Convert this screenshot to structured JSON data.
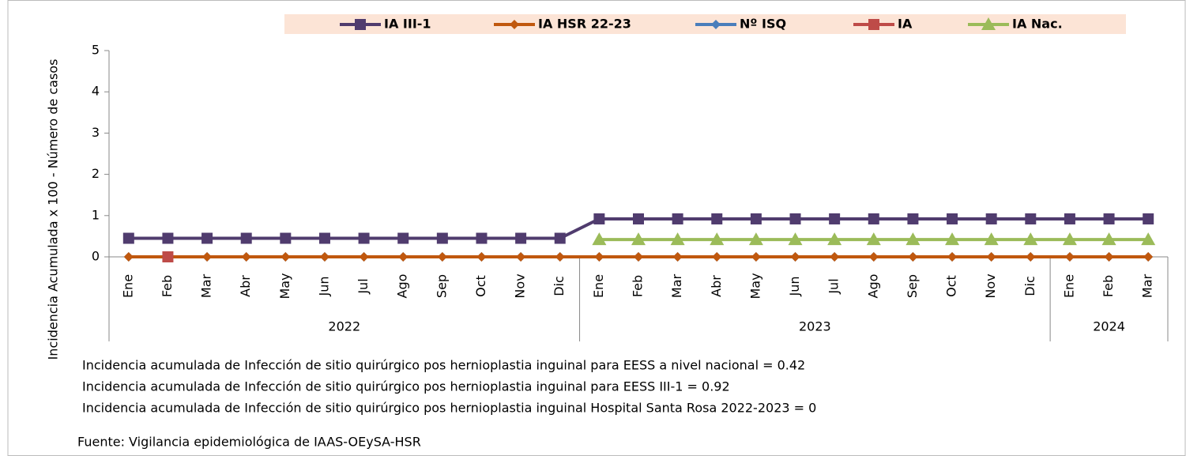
{
  "chart_data": {
    "type": "line",
    "ylabel": "Incidencia Acumulada x 100 - Número de casos",
    "category_groups": [
      {
        "name": "2022",
        "categories": [
          "Ene",
          "Feb",
          "Mar",
          "Abr",
          "May",
          "Jun",
          "Jul",
          "Ago",
          "Sep",
          "Oct",
          "Nov",
          "Dic"
        ]
      },
      {
        "name": "2023",
        "categories": [
          "Ene",
          "Feb",
          "Mar",
          "Abr",
          "May",
          "Jun",
          "Jul",
          "Ago",
          "Sep",
          "Oct",
          "Nov",
          "Dic"
        ]
      },
      {
        "name": "2024",
        "categories": [
          "Ene",
          "Feb",
          "Mar"
        ]
      }
    ],
    "series": [
      {
        "name": "IA III-1",
        "color": "#503c6e",
        "marker": "square",
        "values": [
          0.45,
          0.45,
          0.45,
          0.45,
          0.45,
          0.45,
          0.45,
          0.45,
          0.45,
          0.45,
          0.45,
          0.45,
          0.92,
          0.92,
          0.92,
          0.92,
          0.92,
          0.92,
          0.92,
          0.92,
          0.92,
          0.92,
          0.92,
          0.92,
          0.92,
          0.92,
          0.92
        ]
      },
      {
        "name": "Nº ISQ",
        "color": "#4a7ebb",
        "marker": "diamond",
        "values": [
          0,
          0,
          0,
          0,
          0,
          0,
          0,
          0,
          0,
          0,
          0,
          0,
          0,
          0,
          0,
          0,
          0,
          0,
          0,
          0,
          0,
          0,
          0,
          0,
          0,
          0,
          0
        ]
      },
      {
        "name": "IA HSR 22-23",
        "color": "#c0580e",
        "marker": "diamond",
        "values": [
          0,
          0,
          0,
          0,
          0,
          0,
          0,
          0,
          0,
          0,
          0,
          0,
          0,
          0,
          0,
          0,
          0,
          0,
          0,
          0,
          0,
          0,
          0,
          0,
          0,
          0,
          0
        ]
      },
      {
        "name": "IA",
        "color": "#be4b48",
        "marker": "square",
        "values": [
          null,
          0,
          null,
          null,
          null,
          null,
          null,
          null,
          null,
          null,
          null,
          null,
          null,
          null,
          null,
          null,
          null,
          null,
          null,
          null,
          null,
          null,
          null,
          null,
          null,
          null,
          null
        ]
      },
      {
        "name": "IA  Nac.",
        "color": "#9bbb59",
        "marker": "triangle",
        "values": [
          null,
          null,
          null,
          null,
          null,
          null,
          null,
          null,
          null,
          null,
          null,
          null,
          0.42,
          0.42,
          0.42,
          0.42,
          0.42,
          0.42,
          0.42,
          0.42,
          0.42,
          0.42,
          0.42,
          0.42,
          0.42,
          0.42,
          0.42
        ]
      }
    ],
    "legend_order": [
      0,
      2,
      1,
      3,
      4
    ],
    "ylim": [
      0,
      5
    ],
    "yticks": [
      0,
      1,
      2,
      3,
      4,
      5
    ],
    "legend_position": "top",
    "legend_background": "#fce4d6",
    "notes": [
      "Incidencia acumulada de Infección de sitio quirúrgico pos hernioplastia inguinal para EESS a nivel nacional = 0.42",
      "Incidencia acumulada de Infección de sitio quirúrgico pos hernioplastia inguinal para EESS III-1 = 0.92",
      "Incidencia acumulada de Infección de sitio quirúrgico pos hernioplastia inguinal Hospital Santa Rosa  2022-2023 = 0"
    ],
    "source": "Fuente: Vigilancia epidemiológica de IAAS-OEySA-HSR"
  }
}
